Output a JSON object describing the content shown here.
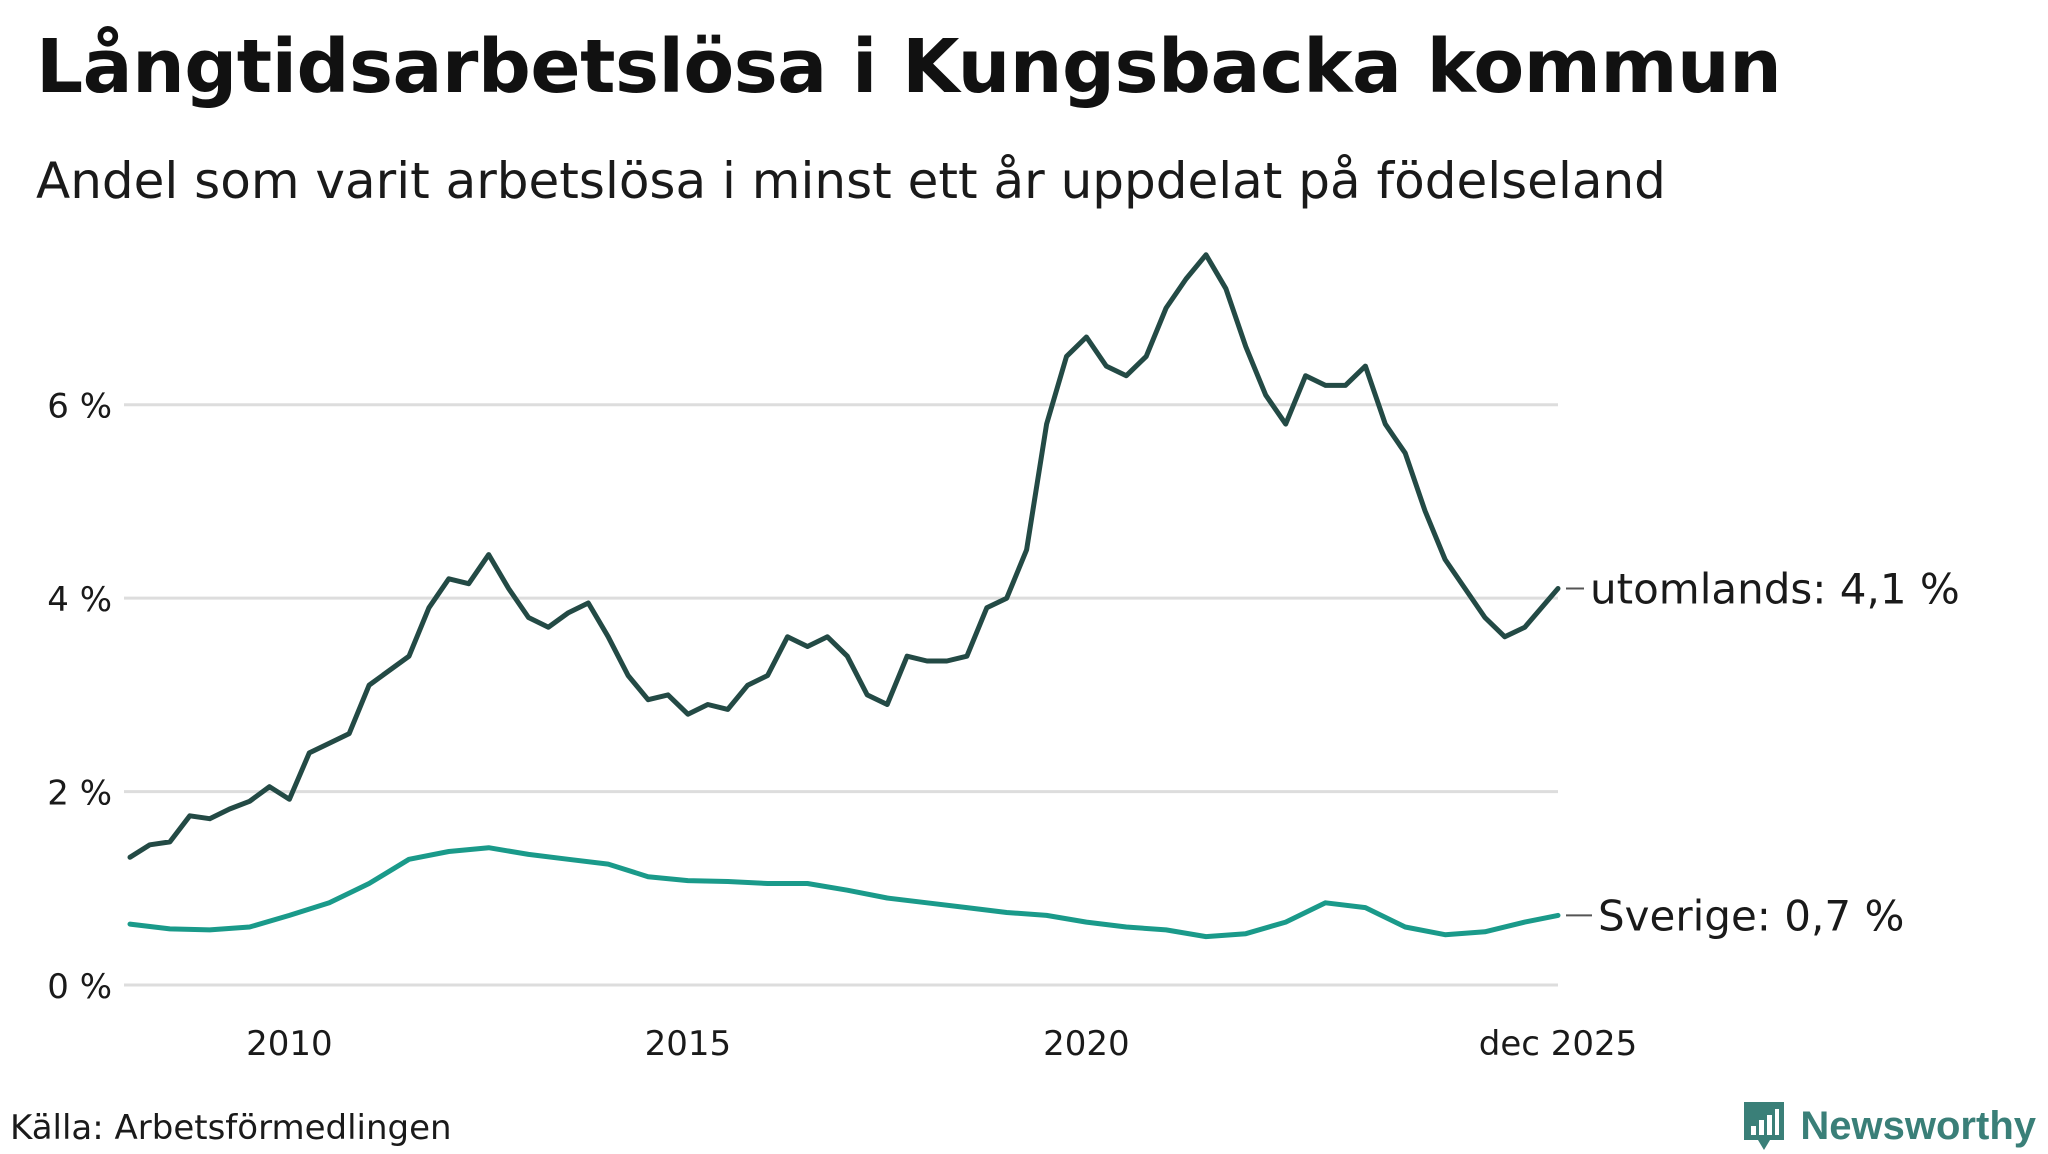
{
  "title": "Långtidsarbetslösa i Kungsbacka kommun",
  "subtitle": "Andel som varit arbetslösa i minst ett år uppdelat på födelseland",
  "source": "Källa: Arbetsförmedlingen",
  "brand": {
    "name": "Newsworthy",
    "icon": "newsworthy-chart-logo-icon",
    "color": "#3a7f78"
  },
  "chart_data": {
    "type": "line",
    "title": "Långtidsarbetslösa i Kungsbacka kommun",
    "xlabel": "",
    "ylabel": "",
    "grid": true,
    "xlim": [
      2008.0,
      2025.917
    ],
    "ylim": [
      0,
      7.6
    ],
    "y_ticks": [
      0,
      2,
      4,
      6
    ],
    "y_tick_labels": [
      "0 %",
      "2 %",
      "4 %",
      "6 %"
    ],
    "x_ticks": [
      2010,
      2015,
      2020,
      2025.917
    ],
    "x_tick_labels": [
      "2010",
      "2015",
      "2020",
      "dec 2025"
    ],
    "series": [
      {
        "name": "utomlands",
        "end_label": "utomlands: 4,1 %",
        "color": "#234a45",
        "points": [
          [
            2008.0,
            1.32
          ],
          [
            2008.25,
            1.45
          ],
          [
            2008.5,
            1.48
          ],
          [
            2008.75,
            1.75
          ],
          [
            2009.0,
            1.72
          ],
          [
            2009.25,
            1.82
          ],
          [
            2009.5,
            1.9
          ],
          [
            2009.75,
            2.05
          ],
          [
            2010.0,
            1.92
          ],
          [
            2010.25,
            2.4
          ],
          [
            2010.5,
            2.5
          ],
          [
            2010.75,
            2.6
          ],
          [
            2011.0,
            3.1
          ],
          [
            2011.25,
            3.25
          ],
          [
            2011.5,
            3.4
          ],
          [
            2011.75,
            3.9
          ],
          [
            2012.0,
            4.2
          ],
          [
            2012.25,
            4.15
          ],
          [
            2012.5,
            4.45
          ],
          [
            2012.75,
            4.1
          ],
          [
            2013.0,
            3.8
          ],
          [
            2013.25,
            3.7
          ],
          [
            2013.5,
            3.85
          ],
          [
            2013.75,
            3.95
          ],
          [
            2014.0,
            3.6
          ],
          [
            2014.25,
            3.2
          ],
          [
            2014.5,
            2.95
          ],
          [
            2014.75,
            3.0
          ],
          [
            2015.0,
            2.8
          ],
          [
            2015.25,
            2.9
          ],
          [
            2015.5,
            2.85
          ],
          [
            2015.75,
            3.1
          ],
          [
            2016.0,
            3.2
          ],
          [
            2016.25,
            3.6
          ],
          [
            2016.5,
            3.5
          ],
          [
            2016.75,
            3.6
          ],
          [
            2017.0,
            3.4
          ],
          [
            2017.25,
            3.0
          ],
          [
            2017.5,
            2.9
          ],
          [
            2017.75,
            3.4
          ],
          [
            2018.0,
            3.35
          ],
          [
            2018.25,
            3.35
          ],
          [
            2018.5,
            3.4
          ],
          [
            2018.75,
            3.9
          ],
          [
            2019.0,
            4.0
          ],
          [
            2019.25,
            4.5
          ],
          [
            2019.5,
            5.8
          ],
          [
            2019.75,
            6.5
          ],
          [
            2020.0,
            6.7
          ],
          [
            2020.25,
            6.4
          ],
          [
            2020.5,
            6.3
          ],
          [
            2020.75,
            6.5
          ],
          [
            2021.0,
            7.0
          ],
          [
            2021.25,
            7.3
          ],
          [
            2021.5,
            7.55
          ],
          [
            2021.75,
            7.2
          ],
          [
            2022.0,
            6.6
          ],
          [
            2022.25,
            6.1
          ],
          [
            2022.5,
            5.8
          ],
          [
            2022.75,
            6.3
          ],
          [
            2023.0,
            6.2
          ],
          [
            2023.25,
            6.2
          ],
          [
            2023.5,
            6.4
          ],
          [
            2023.75,
            5.8
          ],
          [
            2024.0,
            5.5
          ],
          [
            2024.25,
            4.9
          ],
          [
            2024.5,
            4.4
          ],
          [
            2024.75,
            4.1
          ],
          [
            2025.0,
            3.8
          ],
          [
            2025.25,
            3.6
          ],
          [
            2025.5,
            3.7
          ],
          [
            2025.917,
            4.1
          ]
        ]
      },
      {
        "name": "Sverige",
        "end_label": "Sverige: 0,7 %",
        "color": "#1a9a8a",
        "points": [
          [
            2008.0,
            0.63
          ],
          [
            2008.5,
            0.58
          ],
          [
            2009.0,
            0.57
          ],
          [
            2009.5,
            0.6
          ],
          [
            2010.0,
            0.72
          ],
          [
            2010.5,
            0.85
          ],
          [
            2011.0,
            1.05
          ],
          [
            2011.5,
            1.3
          ],
          [
            2012.0,
            1.38
          ],
          [
            2012.5,
            1.42
          ],
          [
            2013.0,
            1.35
          ],
          [
            2013.5,
            1.3
          ],
          [
            2014.0,
            1.25
          ],
          [
            2014.5,
            1.12
          ],
          [
            2015.0,
            1.08
          ],
          [
            2015.5,
            1.07
          ],
          [
            2016.0,
            1.05
          ],
          [
            2016.5,
            1.05
          ],
          [
            2017.0,
            0.98
          ],
          [
            2017.5,
            0.9
          ],
          [
            2018.0,
            0.85
          ],
          [
            2018.5,
            0.8
          ],
          [
            2019.0,
            0.75
          ],
          [
            2019.5,
            0.72
          ],
          [
            2020.0,
            0.65
          ],
          [
            2020.5,
            0.6
          ],
          [
            2021.0,
            0.57
          ],
          [
            2021.5,
            0.5
          ],
          [
            2022.0,
            0.53
          ],
          [
            2022.5,
            0.65
          ],
          [
            2023.0,
            0.85
          ],
          [
            2023.5,
            0.8
          ],
          [
            2024.0,
            0.6
          ],
          [
            2024.5,
            0.52
          ],
          [
            2025.0,
            0.55
          ],
          [
            2025.5,
            0.65
          ],
          [
            2025.917,
            0.72
          ]
        ]
      }
    ]
  }
}
